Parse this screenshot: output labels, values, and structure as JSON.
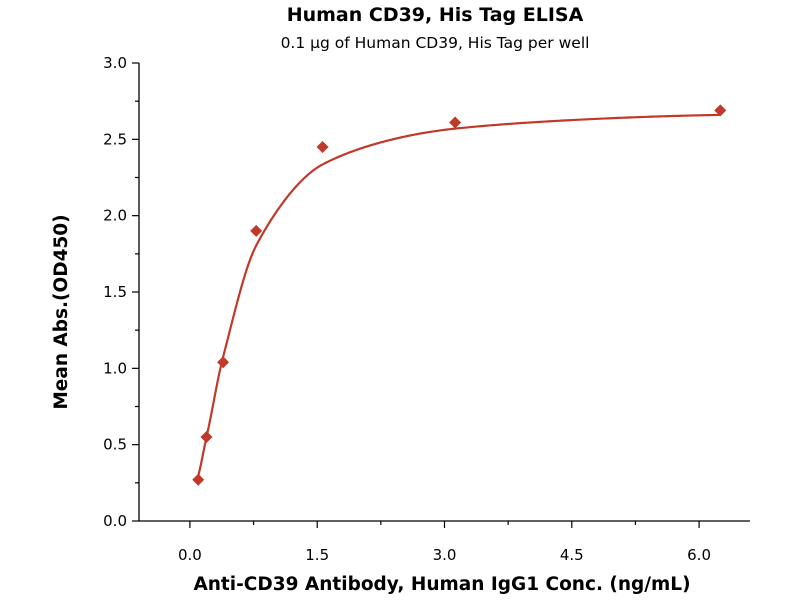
{
  "chart_data": {
    "type": "scatter",
    "title": "Human CD39, His Tag ELISA",
    "subtitle": "0.1 µg of Human CD39, His Tag per well",
    "xlabel": "Anti-CD39 Antibody, Human IgG1 Conc. (ng/mL)",
    "ylabel": "Mean Abs.(OD450)",
    "xlim": [
      -0.6,
      6.6
    ],
    "ylim": [
      0,
      3.0
    ],
    "x_ticks": [
      "0.0",
      "1.5",
      "3.0",
      "4.5",
      "6.0"
    ],
    "y_ticks": [
      "0.0",
      "0.5",
      "1.0",
      "1.5",
      "2.0",
      "2.5",
      "3.0"
    ],
    "grid": false,
    "legend": "none",
    "marker": "diamond",
    "color": "#c0392b",
    "series": [
      {
        "x": [
          0.098,
          0.195,
          0.391,
          0.781,
          1.563,
          3.125,
          6.25
        ],
        "y": [
          0.27,
          0.55,
          1.04,
          1.9,
          2.45,
          2.61,
          2.69
        ]
      }
    ],
    "fit_curve": "sigmoidal fit through data points"
  }
}
